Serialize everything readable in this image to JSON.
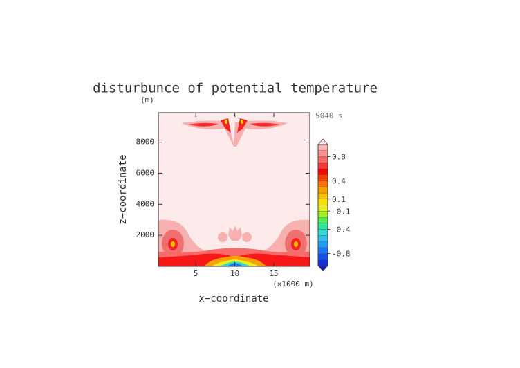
{
  "chart_data": {
    "type": "contour",
    "title": "disturbunce of potential temperature",
    "y_unit": "(m)",
    "x_unit": "(×1000 m)",
    "time_label": "5040 s",
    "x_label": "x−coordinate",
    "y_label": "z−coordinate",
    "xlim": [
      0.2,
      19.6
    ],
    "ylim": [
      0,
      9900
    ],
    "xticks": [
      5,
      10,
      15
    ],
    "yticks": [
      2000,
      4000,
      6000,
      8000
    ],
    "colorbar": {
      "clim": [
        -1,
        1
      ],
      "ticks": [
        0.8,
        0.4,
        0.1,
        -0.1,
        -0.4,
        -0.8
      ],
      "colors": [
        "#1030e0",
        "#1050f0",
        "#1878f8",
        "#20a0f8",
        "#30c0f0",
        "#30d8d0",
        "#30e8a0",
        "#50f050",
        "#a0f020",
        "#e8f020",
        "#f8e000",
        "#f8c000",
        "#f8a000",
        "#f87000",
        "#f84000",
        "#f80000",
        "#f83838",
        "#f86a6a",
        "#f89090",
        "#f8b0b0"
      ],
      "extend_low_color": "#1020c0",
      "extend_high_color": "#fde8e8"
    }
  }
}
